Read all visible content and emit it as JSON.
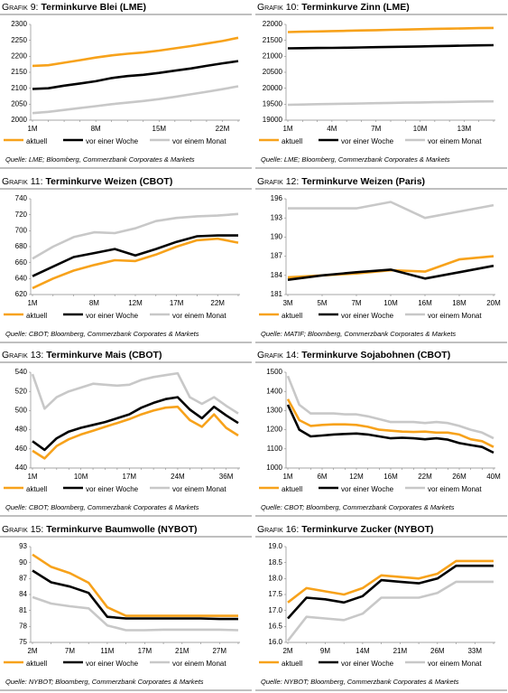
{
  "chart_data": [
    {
      "type": "line",
      "label": "Grafik 9:",
      "title": "Terminkurve Blei (LME)",
      "source": "Quelle: LME; Bloomberg, Commerzbank Corporates & Markets",
      "categories": [
        "1M",
        null,
        null,
        null,
        "8M",
        null,
        null,
        null,
        "15M",
        null,
        null,
        null,
        "22M",
        null
      ],
      "ylim": [
        2000,
        2300
      ],
      "yticks": [
        2000,
        2050,
        2100,
        2150,
        2200,
        2250,
        2300
      ],
      "series": [
        {
          "name": "aktuell",
          "color": "#f7a21b",
          "values": [
            2170,
            2172,
            2180,
            2188,
            2196,
            2203,
            2208,
            2212,
            2218,
            2225,
            2232,
            2240,
            2248,
            2258
          ]
        },
        {
          "name": "vor einer Woche",
          "color": "#000000",
          "values": [
            2098,
            2100,
            2108,
            2115,
            2122,
            2132,
            2138,
            2142,
            2148,
            2155,
            2162,
            2170,
            2178,
            2185
          ]
        },
        {
          "name": "vor einem Monat",
          "color": "#c8c8c8",
          "values": [
            2022,
            2026,
            2032,
            2038,
            2044,
            2050,
            2055,
            2060,
            2066,
            2073,
            2081,
            2089,
            2097,
            2106
          ]
        }
      ]
    },
    {
      "type": "line",
      "label": "Grafik 10:",
      "title": "Terminkurve Zinn (LME)",
      "source": "Quelle: LME; Bloomberg, Commerzbank Corporates & Markets",
      "categories": [
        "1M",
        null,
        null,
        "4M",
        null,
        null,
        "7M",
        null,
        null,
        "10M",
        null,
        null,
        "13M",
        null,
        null
      ],
      "ylim": [
        19000,
        22000
      ],
      "yticks": [
        19000,
        19500,
        20000,
        20500,
        21000,
        21500,
        22000
      ],
      "series": [
        {
          "name": "aktuell",
          "color": "#f7a21b",
          "values": [
            21760,
            21770,
            21780,
            21790,
            21800,
            21810,
            21820,
            21830,
            21840,
            21850,
            21860,
            21868,
            21876,
            21884,
            21890
          ]
        },
        {
          "name": "vor einer Woche",
          "color": "#000000",
          "values": [
            21250,
            21255,
            21260,
            21265,
            21270,
            21278,
            21286,
            21294,
            21302,
            21310,
            21318,
            21326,
            21334,
            21342,
            21350
          ]
        },
        {
          "name": "vor einem Monat",
          "color": "#c8c8c8",
          "values": [
            19480,
            19490,
            19500,
            19508,
            19516,
            19524,
            19532,
            19540,
            19548,
            19555,
            19562,
            19570,
            19578,
            19585,
            19590
          ]
        }
      ]
    },
    {
      "type": "line",
      "label": "Grafik 11:",
      "title": "Terminkurve Weizen (CBOT)",
      "source": "Quelle: CBOT; Bloomberg, Commerzbank Corporates & Markets",
      "categories": [
        "1M",
        null,
        null,
        "8M",
        null,
        "12M",
        null,
        "17M",
        null,
        "22M",
        null
      ],
      "ylim": [
        620,
        740
      ],
      "yticks": [
        620,
        640,
        660,
        680,
        700,
        720,
        740
      ],
      "series": [
        {
          "name": "aktuell",
          "color": "#f7a21b",
          "values": [
            628,
            640,
            650,
            657,
            663,
            662,
            670,
            680,
            688,
            690,
            685
          ]
        },
        {
          "name": "vor einer Woche",
          "color": "#000000",
          "values": [
            643,
            655,
            667,
            672,
            677,
            669,
            677,
            686,
            693,
            694,
            694
          ]
        },
        {
          "name": "vor einem Monat",
          "color": "#c8c8c8",
          "values": [
            665,
            680,
            692,
            698,
            697,
            703,
            712,
            716,
            718,
            719,
            721
          ]
        }
      ]
    },
    {
      "type": "line",
      "label": "Grafik 12:",
      "title": "Terminkurve Weizen (Paris)",
      "source": "Quelle: MATIF; Bloomberg, Commerzbank Corporates & Markets",
      "categories": [
        "3M",
        "5M",
        "7M",
        "10M",
        "16M",
        "18M",
        "20M"
      ],
      "ylim": [
        181,
        196
      ],
      "yticks": [
        181,
        184,
        187,
        190,
        193,
        196
      ],
      "series": [
        {
          "name": "aktuell",
          "color": "#f7a21b",
          "values": [
            183.7,
            184.0,
            184.3,
            184.8,
            184.6,
            186.5,
            187.0
          ]
        },
        {
          "name": "vor einer Woche",
          "color": "#000000",
          "values": [
            183.3,
            184.0,
            184.5,
            184.9,
            183.5,
            184.5,
            185.5
          ]
        },
        {
          "name": "vor einem Monat",
          "color": "#c8c8c8",
          "values": [
            194.5,
            194.5,
            194.5,
            195.5,
            193.0,
            194.0,
            195.0
          ]
        }
      ]
    },
    {
      "type": "line",
      "label": "Grafik 13:",
      "title": "Terminkurve Mais (CBOT)",
      "source": "Quelle: CBOT; Bloomberg, Commerzbank Corporates & Markets",
      "categories": [
        "1M",
        null,
        null,
        null,
        "10M",
        null,
        null,
        null,
        "17M",
        null,
        null,
        null,
        "24M",
        null,
        null,
        null,
        "36M",
        null
      ],
      "ylim": [
        440,
        540
      ],
      "yticks": [
        440,
        460,
        480,
        500,
        520,
        540
      ],
      "series": [
        {
          "name": "aktuell",
          "color": "#f7a21b",
          "values": [
            458,
            450,
            463,
            470,
            475,
            479,
            483,
            487,
            491,
            496,
            500,
            503,
            504,
            490,
            483,
            496,
            482,
            474
          ]
        },
        {
          "name": "vor einer Woche",
          "color": "#000000",
          "values": [
            468,
            459,
            471,
            478,
            482,
            485,
            488,
            492,
            496,
            503,
            508,
            512,
            514,
            501,
            492,
            504,
            495,
            487
          ]
        },
        {
          "name": "vor einem Monat",
          "color": "#c8c8c8",
          "values": [
            538,
            502,
            514,
            520,
            524,
            528,
            527,
            526,
            527,
            532,
            535,
            537,
            539,
            514,
            507,
            514,
            505,
            497
          ]
        }
      ]
    },
    {
      "type": "line",
      "label": "Grafik 14:",
      "title": "Terminkurve Sojabohnen (CBOT)",
      "source": "Quelle: CBOT; Bloomberg, Commerzbank Corporates & Markets",
      "categories": [
        "1M",
        null,
        null,
        "6M",
        null,
        null,
        "12M",
        null,
        null,
        "16M",
        null,
        null,
        "22M",
        null,
        null,
        "26M",
        null,
        null,
        "40M"
      ],
      "ylim": [
        1000,
        1500
      ],
      "yticks": [
        1000,
        1100,
        1200,
        1300,
        1400,
        1500
      ],
      "series": [
        {
          "name": "aktuell",
          "color": "#f7a21b",
          "values": [
            1360,
            1250,
            1220,
            1225,
            1228,
            1228,
            1225,
            1215,
            1200,
            1195,
            1190,
            1188,
            1190,
            1185,
            1185,
            1175,
            1150,
            1140,
            1110
          ]
        },
        {
          "name": "vor einer Woche",
          "color": "#000000",
          "values": [
            1330,
            1200,
            1165,
            1170,
            1175,
            1178,
            1180,
            1175,
            1165,
            1155,
            1158,
            1155,
            1150,
            1155,
            1148,
            1130,
            1120,
            1110,
            1080
          ]
        },
        {
          "name": "vor einem Monat",
          "color": "#c8c8c8",
          "values": [
            1480,
            1330,
            1285,
            1285,
            1285,
            1280,
            1280,
            1270,
            1255,
            1240,
            1240,
            1240,
            1235,
            1240,
            1235,
            1220,
            1200,
            1185,
            1155
          ]
        }
      ]
    },
    {
      "type": "line",
      "label": "Grafik 15:",
      "title": "Terminkurve Baumwolle (NYBOT)",
      "source": "Quelle: NYBOT; Bloomberg, Commerzbank Corporates & Markets",
      "categories": [
        "2M",
        null,
        "7M",
        null,
        "11M",
        null,
        "17M",
        null,
        "21M",
        null,
        "27M",
        null
      ],
      "ylim": [
        75,
        93
      ],
      "yticks": [
        75,
        78,
        81,
        84,
        87,
        90,
        93
      ],
      "series": [
        {
          "name": "aktuell",
          "color": "#f7a21b",
          "values": [
            91.5,
            89.2,
            88.0,
            86.2,
            81.6,
            80.0,
            80.0,
            80.0,
            80.0,
            80.0,
            80.0,
            80.0
          ]
        },
        {
          "name": "vor einer Woche",
          "color": "#000000",
          "values": [
            88.5,
            86.3,
            85.5,
            84.3,
            79.8,
            79.5,
            79.5,
            79.5,
            79.5,
            79.5,
            79.4,
            79.4
          ]
        },
        {
          "name": "vor einem Monat",
          "color": "#c8c8c8",
          "values": [
            83.5,
            82.3,
            81.8,
            81.4,
            78.2,
            77.3,
            77.3,
            77.4,
            77.4,
            77.4,
            77.4,
            77.3
          ]
        }
      ]
    },
    {
      "type": "line",
      "label": "Grafik 16:",
      "title": "Terminkurve Zucker (NYBOT)",
      "source": "Quelle: NYBOT; Bloomberg, Commerzbank Corporates & Markets",
      "categories": [
        "2M",
        null,
        "9M",
        null,
        "14M",
        null,
        "21M",
        null,
        "26M",
        null,
        "33M",
        null
      ],
      "ylim": [
        16,
        19
      ],
      "yticks": [
        {
          "value": 16,
          "label": "16.0"
        },
        16.5,
        {
          "value": 17,
          "label": "17.0"
        },
        17.5,
        {
          "value": 18,
          "label": "18.0"
        },
        18.5,
        {
          "value": 19,
          "label": "19.0"
        }
      ],
      "series": [
        {
          "name": "aktuell",
          "color": "#f7a21b",
          "values": [
            17.25,
            17.7,
            17.6,
            17.5,
            17.7,
            18.1,
            18.05,
            18.0,
            18.15,
            18.55,
            18.55,
            18.55
          ]
        },
        {
          "name": "vor einer Woche",
          "color": "#000000",
          "values": [
            16.75,
            17.4,
            17.35,
            17.25,
            17.45,
            17.95,
            17.9,
            17.85,
            18.0,
            18.4,
            18.4,
            18.4
          ]
        },
        {
          "name": "vor einem Monat",
          "color": "#c8c8c8",
          "values": [
            16.05,
            16.8,
            16.75,
            16.7,
            16.9,
            17.4,
            17.4,
            17.4,
            17.55,
            17.9,
            17.9,
            17.9
          ]
        }
      ]
    }
  ]
}
